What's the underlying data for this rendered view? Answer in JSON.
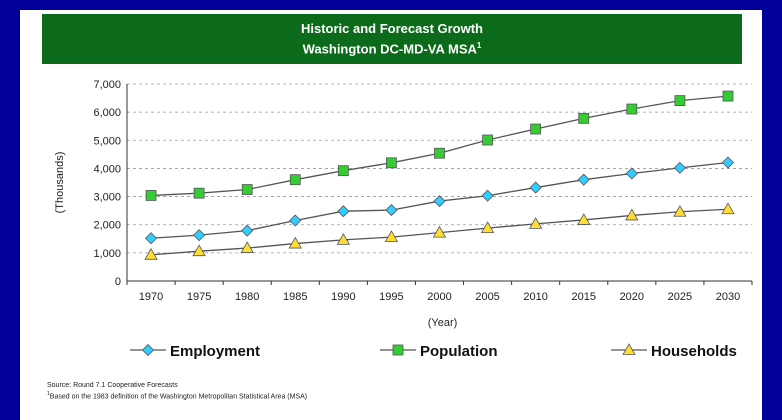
{
  "header": {
    "title_line1": "Historic and Forecast Growth",
    "title_line2": "Washington DC-MD-VA MSA",
    "title_footnote_mark": "1"
  },
  "footnotes": {
    "source": "Source: Round 7.1 Cooperative Forecasts",
    "note_mark": "1",
    "note": "Based on the 1983 definition of the Washington Metropolitan Statistical Area (MSA)"
  },
  "colors": {
    "page_bg": "#000099",
    "banner_bg": "#0b6b1a",
    "employment": "#33ccff",
    "population": "#33cc33",
    "households": "#ffdd33",
    "line": "#555555"
  },
  "chart_data": {
    "type": "line",
    "title": "Historic and Forecast Growth Washington DC-MD-VA MSA",
    "xlabel": "(Year)",
    "ylabel": "(Thousands)",
    "categories": [
      "1970",
      "1975",
      "1980",
      "1985",
      "1990",
      "1995",
      "2000",
      "2005",
      "2010",
      "2015",
      "2020",
      "2025",
      "2030"
    ],
    "ylim": [
      0,
      7000
    ],
    "yticks": [
      "0",
      "1,000",
      "2,000",
      "3,000",
      "4,000",
      "5,000",
      "6,000",
      "7,000"
    ],
    "grid": true,
    "legend_position": "bottom",
    "series": [
      {
        "name": "Employment",
        "marker": "diamond",
        "color": "#33ccff",
        "values": [
          1520,
          1630,
          1790,
          2150,
          2480,
          2520,
          2840,
          3030,
          3320,
          3600,
          3820,
          4020,
          4210
        ]
      },
      {
        "name": "Population",
        "marker": "square",
        "color": "#33cc33",
        "values": [
          3040,
          3120,
          3250,
          3600,
          3920,
          4200,
          4540,
          5010,
          5400,
          5780,
          6110,
          6410,
          6570
        ]
      },
      {
        "name": "Households",
        "marker": "triangle",
        "color": "#ffdd33",
        "values": [
          930,
          1060,
          1170,
          1330,
          1460,
          1560,
          1720,
          1880,
          2030,
          2170,
          2330,
          2460,
          2550
        ]
      }
    ]
  }
}
